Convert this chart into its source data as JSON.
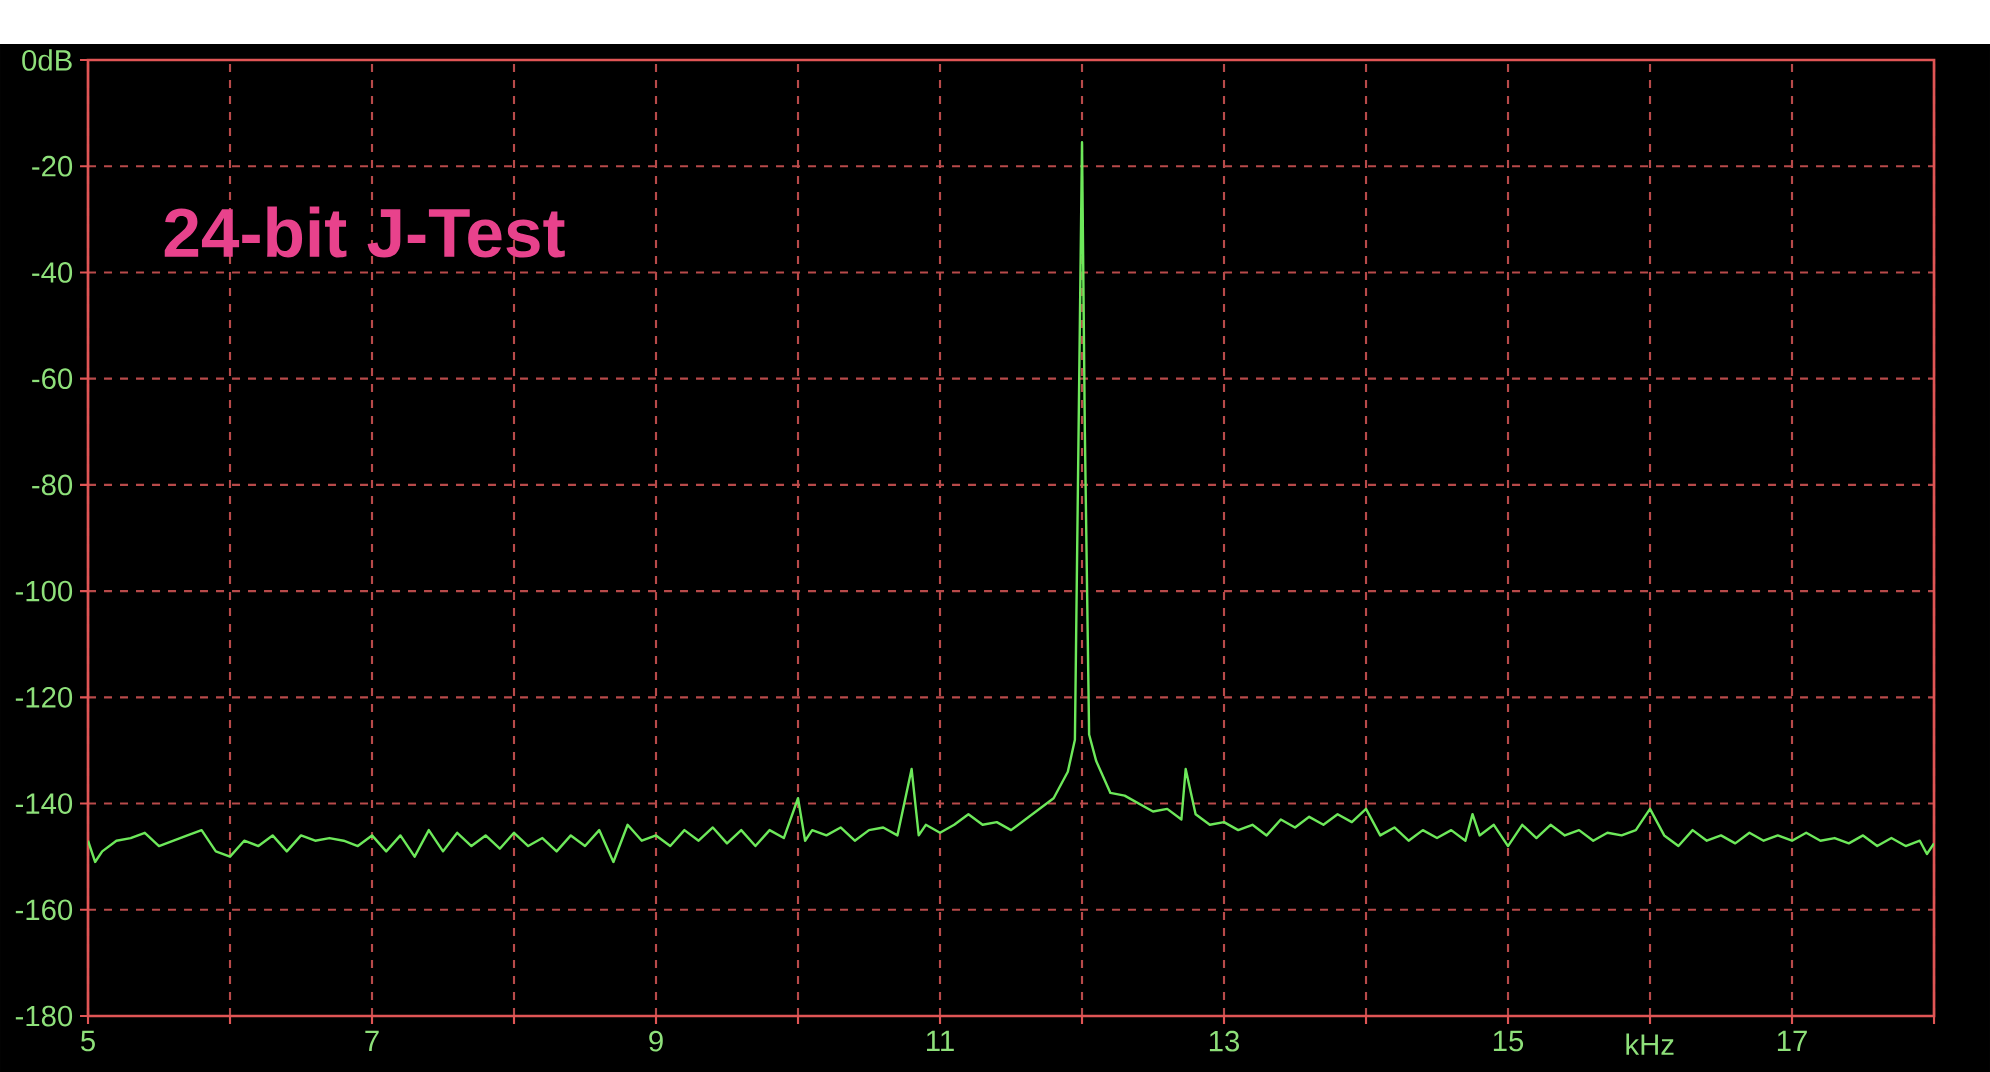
{
  "chart_data": {
    "type": "line",
    "xlabel": "kHz",
    "annotations": [
      "24-bit J-Test"
    ],
    "xlim": [
      5,
      18
    ],
    "ylim": [
      -180,
      0
    ],
    "xticks": [
      5,
      {
        "value": 6,
        "label": null
      },
      7,
      {
        "value": 8,
        "label": null
      },
      9,
      {
        "value": 10,
        "label": null
      },
      11,
      {
        "value": 12,
        "label": null
      },
      13,
      {
        "value": 14,
        "label": null
      },
      15,
      {
        "value": 16,
        "label": null
      },
      17,
      {
        "value": 18,
        "label": null
      }
    ],
    "yticks": [
      {
        "value": 0,
        "label": "0dB"
      },
      -20,
      -40,
      -60,
      -80,
      -100,
      -120,
      -140,
      -160,
      -180
    ],
    "grid": true,
    "line_style": "solid",
    "series": [
      {
        "color": "#6de85a",
        "x": [
          5.0,
          5.05,
          5.1,
          5.2,
          5.3,
          5.4,
          5.5,
          5.6,
          5.7,
          5.8,
          5.9,
          6.0,
          6.1,
          6.2,
          6.3,
          6.4,
          6.5,
          6.6,
          6.7,
          6.8,
          6.9,
          7.0,
          7.1,
          7.2,
          7.3,
          7.4,
          7.5,
          7.6,
          7.7,
          7.8,
          7.9,
          8.0,
          8.1,
          8.2,
          8.3,
          8.4,
          8.5,
          8.6,
          8.7,
          8.8,
          8.9,
          9.0,
          9.1,
          9.2,
          9.3,
          9.4,
          9.5,
          9.6,
          9.7,
          9.8,
          9.9,
          10.0,
          10.05,
          10.1,
          10.2,
          10.3,
          10.4,
          10.5,
          10.6,
          10.7,
          10.8,
          10.85,
          10.9,
          11.0,
          11.1,
          11.2,
          11.3,
          11.4,
          11.5,
          11.6,
          11.7,
          11.8,
          11.9,
          11.95,
          12.0,
          12.02,
          12.05,
          12.1,
          12.2,
          12.3,
          12.4,
          12.5,
          12.6,
          12.7,
          12.73,
          12.8,
          12.9,
          13.0,
          13.1,
          13.2,
          13.3,
          13.4,
          13.5,
          13.6,
          13.7,
          13.8,
          13.9,
          14.0,
          14.1,
          14.2,
          14.3,
          14.4,
          14.5,
          14.6,
          14.7,
          14.75,
          14.8,
          14.9,
          15.0,
          15.1,
          15.2,
          15.3,
          15.4,
          15.5,
          15.6,
          15.7,
          15.8,
          15.9,
          16.0,
          16.1,
          16.2,
          16.3,
          16.4,
          16.5,
          16.6,
          16.7,
          16.8,
          16.9,
          17.0,
          17.1,
          17.2,
          17.3,
          17.4,
          17.5,
          17.6,
          17.7,
          17.8,
          17.9,
          17.95,
          18.0
        ],
        "values": [
          -147,
          -151,
          -149,
          -147,
          -146.5,
          -145.5,
          -148,
          -147,
          -146,
          -145,
          -149,
          -150,
          -147,
          -148,
          -146,
          -149,
          -146,
          -147,
          -146.5,
          -147,
          -148,
          -146,
          -149,
          -146,
          -150,
          -145,
          -149,
          -145.5,
          -148,
          -146,
          -148.5,
          -145.5,
          -148,
          -146.5,
          -149,
          -146,
          -148,
          -145,
          -151,
          -144,
          -147,
          -146,
          -148,
          -145,
          -147,
          -144.5,
          -147.5,
          -145,
          -148,
          -145,
          -146.5,
          -139,
          -147,
          -145,
          -146,
          -144.5,
          -147,
          -145,
          -144.5,
          -146,
          -133.5,
          -146,
          -144,
          -145.5,
          -144,
          -142,
          -144,
          -143.5,
          -145,
          -143,
          -141,
          -139,
          -134,
          -128,
          -15.5,
          -70,
          -127,
          -132,
          -138,
          -138.5,
          -140,
          -141.5,
          -141,
          -143,
          -133.5,
          -142,
          -144,
          -143.5,
          -145,
          -144,
          -146,
          -143,
          -144.5,
          -142.5,
          -144,
          -142,
          -143.5,
          -141,
          -146,
          -144.5,
          -147,
          -145,
          -146.5,
          -145,
          -147,
          -142,
          -146,
          -144,
          -148,
          -144,
          -146.5,
          -144,
          -146,
          -145,
          -147,
          -145.5,
          -146,
          -145,
          -141,
          -146,
          -148,
          -145,
          -147,
          -146,
          -147.5,
          -145.5,
          -147,
          -146,
          -147,
          -145.5,
          -147,
          -146.5,
          -147.5,
          -146,
          -148,
          -146.5,
          -148,
          -147,
          -149.5,
          -147.5
        ]
      }
    ]
  }
}
